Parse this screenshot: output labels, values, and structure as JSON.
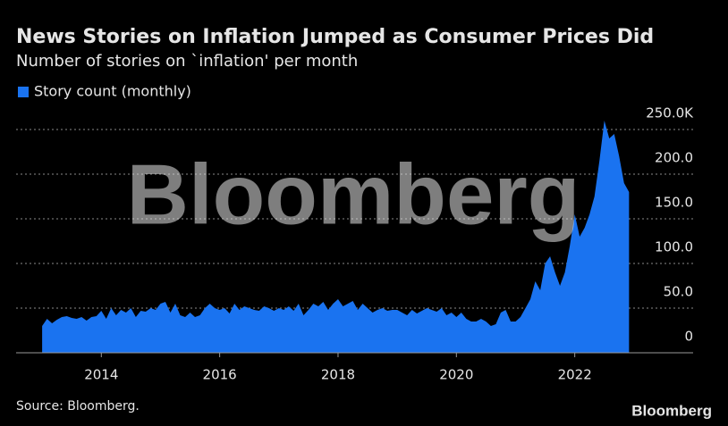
{
  "chart_data": {
    "type": "area",
    "title": "News Stories on Inflation Jumped as Consumer Prices Did",
    "subtitle": "Number of stories on `inflation' per month",
    "source": "Source: Bloomberg.",
    "logo": "Bloomberg",
    "watermark": "Bloomberg",
    "color": "#1a73f0",
    "grid": true,
    "legend": "top-left",
    "xlim": [
      2012.56,
      2024.0
    ],
    "xticks": [
      2014,
      2016,
      2018,
      2020,
      2022
    ],
    "ylim": [
      0,
      250
    ],
    "yticks": [
      0,
      {
        "value": 50,
        "label": "50.0"
      },
      {
        "value": 100,
        "label": "100.0"
      },
      {
        "value": 150,
        "label": "150.0"
      },
      {
        "value": 200,
        "label": "200.0"
      },
      {
        "value": 250,
        "label": "250.0K"
      }
    ],
    "x": [
      2013.0,
      2013.083,
      2013.167,
      2013.25,
      2013.333,
      2013.417,
      2013.5,
      2013.583,
      2013.667,
      2013.75,
      2013.833,
      2013.917,
      2014.0,
      2014.083,
      2014.167,
      2014.25,
      2014.333,
      2014.417,
      2014.5,
      2014.583,
      2014.667,
      2014.75,
      2014.833,
      2014.917,
      2015.0,
      2015.083,
      2015.167,
      2015.25,
      2015.333,
      2015.417,
      2015.5,
      2015.583,
      2015.667,
      2015.75,
      2015.833,
      2015.917,
      2016.0,
      2016.083,
      2016.167,
      2016.25,
      2016.333,
      2016.417,
      2016.5,
      2016.583,
      2016.667,
      2016.75,
      2016.833,
      2016.917,
      2017.0,
      2017.083,
      2017.167,
      2017.25,
      2017.333,
      2017.417,
      2017.5,
      2017.583,
      2017.667,
      2017.75,
      2017.833,
      2017.917,
      2018.0,
      2018.083,
      2018.167,
      2018.25,
      2018.333,
      2018.417,
      2018.5,
      2018.583,
      2018.667,
      2018.75,
      2018.833,
      2018.917,
      2019.0,
      2019.083,
      2019.167,
      2019.25,
      2019.333,
      2019.417,
      2019.5,
      2019.583,
      2019.667,
      2019.75,
      2019.833,
      2019.917,
      2020.0,
      2020.083,
      2020.167,
      2020.25,
      2020.333,
      2020.417,
      2020.5,
      2020.583,
      2020.667,
      2020.75,
      2020.833,
      2020.917,
      2021.0,
      2021.083,
      2021.167,
      2021.25,
      2021.333,
      2021.417,
      2021.5,
      2021.583,
      2021.667,
      2021.75,
      2021.833,
      2021.917,
      2022.0,
      2022.083,
      2022.167,
      2022.25,
      2022.333,
      2022.417,
      2022.5,
      2022.583,
      2022.667,
      2022.75,
      2022.833,
      2022.917
    ],
    "series": [
      {
        "name": "Story count (monthly)",
        "color": "#1a73f0",
        "values": [
          30,
          38,
          33,
          37,
          40,
          41,
          39,
          38,
          40,
          36,
          40,
          41,
          47,
          38,
          50,
          42,
          48,
          45,
          50,
          40,
          47,
          46,
          50,
          48,
          55,
          57,
          45,
          55,
          42,
          40,
          45,
          40,
          42,
          50,
          55,
          50,
          48,
          50,
          44,
          55,
          48,
          52,
          50,
          48,
          47,
          52,
          50,
          47,
          50,
          48,
          52,
          47,
          55,
          42,
          48,
          55,
          52,
          57,
          48,
          55,
          60,
          52,
          55,
          58,
          48,
          55,
          50,
          45,
          48,
          50,
          47,
          48,
          48,
          45,
          42,
          48,
          44,
          47,
          50,
          48,
          46,
          50,
          42,
          45,
          40,
          45,
          38,
          35,
          35,
          38,
          35,
          30,
          32,
          45,
          48,
          35,
          35,
          40,
          50,
          60,
          80,
          70,
          100,
          108,
          90,
          75,
          90,
          120,
          155,
          130,
          140,
          155,
          175,
          215,
          260,
          240,
          245,
          220,
          190,
          180
        ]
      }
    ]
  }
}
